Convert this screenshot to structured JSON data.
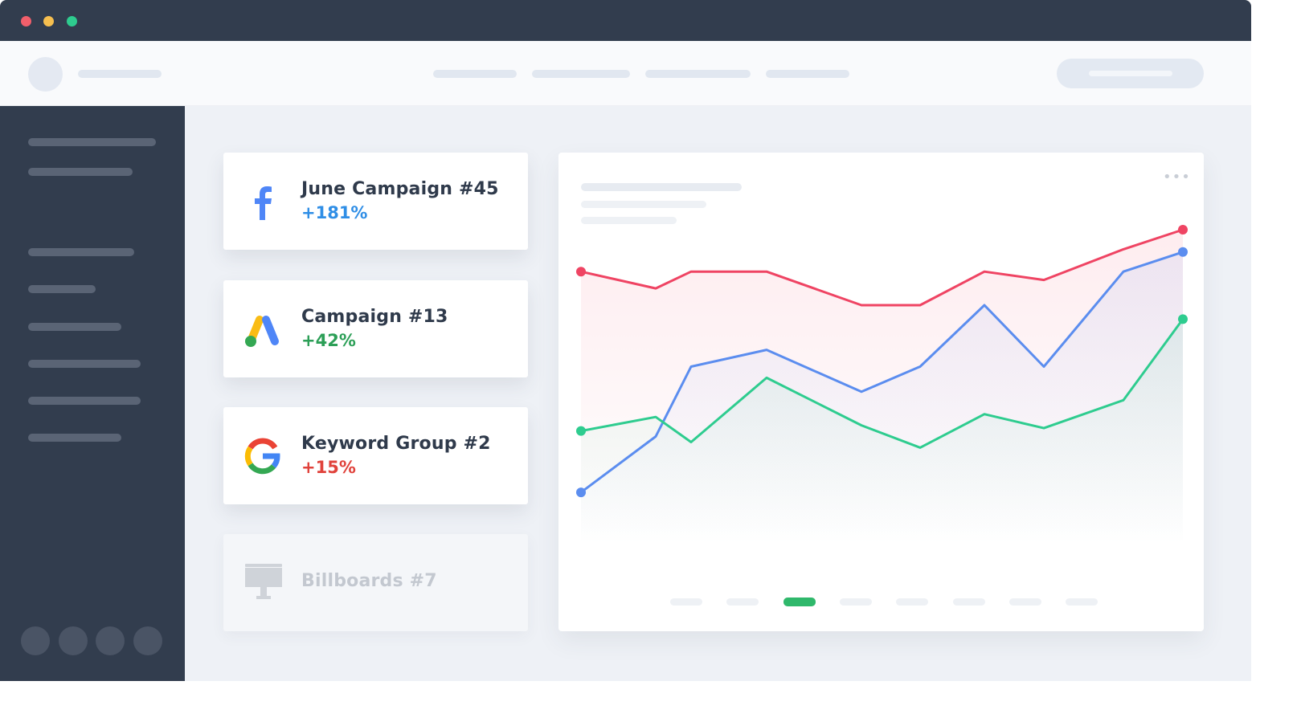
{
  "window": {
    "traffic_lights": [
      "#f25f6b",
      "#f6bf4f",
      "#2ecc8f"
    ]
  },
  "campaigns": [
    {
      "icon": "facebook-icon",
      "title": "June Campaign #45",
      "change": "+181%",
      "color": "#2f8ee6"
    },
    {
      "icon": "google-ads-icon",
      "title": "Campaign #13",
      "change": "+42%",
      "color": "#2c9f57"
    },
    {
      "icon": "google-icon",
      "title": "Keyword Group #2",
      "change": "+15%",
      "color": "#e0423b"
    },
    {
      "icon": "billboard-icon",
      "title": "Billboards #7",
      "change": "",
      "color": "#c3c8d0"
    }
  ],
  "chart_data": {
    "type": "line",
    "title": "",
    "xlabel": "",
    "ylabel": "",
    "x": [
      0,
      1,
      2,
      3,
      4,
      5,
      6,
      7,
      8,
      9
    ],
    "ylim": [
      0,
      100
    ],
    "grid": false,
    "legend": "none",
    "series": [
      {
        "color": "#ef4463",
        "values": [
          85,
          79,
          85,
          85,
          73,
          73,
          85,
          82,
          93,
          100
        ]
      },
      {
        "color": "#5b8def",
        "values": [
          6,
          26,
          51,
          57,
          42,
          51,
          73,
          51,
          85,
          92
        ]
      },
      {
        "color": "#2ecc8f",
        "values": [
          28,
          33,
          24,
          47,
          30,
          22,
          34,
          29,
          39,
          68
        ]
      }
    ],
    "x_positions_note": "",
    "pager": {
      "count": 8,
      "active_index": 2
    }
  }
}
